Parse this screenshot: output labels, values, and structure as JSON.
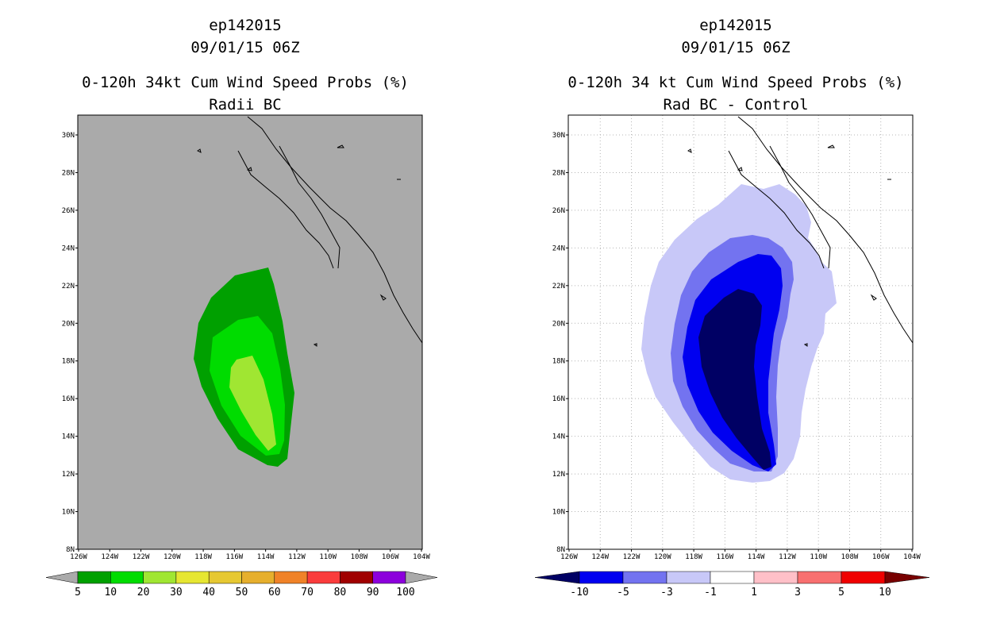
{
  "left_panel": {
    "title_storm": "ep142015",
    "title_date": "09/01/15 06Z",
    "title_product": "0-120h 34kt Cum Wind Speed Probs (%)",
    "title_sub": "Radii BC",
    "background_color": "#aaaaaa",
    "lat_labels": [
      "8N",
      "10N",
      "12N",
      "14N",
      "16N",
      "18N",
      "20N",
      "22N",
      "24N",
      "26N",
      "28N",
      "30N"
    ],
    "lon_labels": [
      "126W",
      "124W",
      "122W",
      "120W",
      "118W",
      "116W",
      "114W",
      "112W",
      "110W",
      "108W",
      "106W",
      "104W"
    ],
    "colorbar": {
      "colors": [
        "#00a000",
        "#00dc00",
        "#a0e632",
        "#e6e632",
        "#e6c832",
        "#e6af2d",
        "#f08228",
        "#fa3c3c",
        "#a00000",
        "#8c00dc"
      ],
      "end_low": "#aaaaaa",
      "end_high": "#aaaaaa",
      "labels": [
        "5",
        "10",
        "20",
        "30",
        "40",
        "50",
        "60",
        "70",
        "80",
        "90",
        "100"
      ]
    }
  },
  "right_panel": {
    "title_storm": "ep142015",
    "title_date": "09/01/15 06Z",
    "title_product": "0-120h 34 kt Cum Wind Speed Probs (%)",
    "title_sub": "Rad BC - Control",
    "background_color": "#ffffff",
    "lat_labels": [
      "8N",
      "10N",
      "12N",
      "14N",
      "16N",
      "18N",
      "20N",
      "22N",
      "24N",
      "26N",
      "28N",
      "30N"
    ],
    "lon_labels": [
      "126W",
      "124W",
      "122W",
      "120W",
      "118W",
      "116W",
      "114W",
      "112W",
      "110W",
      "108W",
      "106W",
      "104W"
    ],
    "colorbar": {
      "colors": [
        "#0000f0",
        "#7373f0",
        "#c8c8f8",
        "#ffffff",
        "#ffc0c8",
        "#f87070",
        "#f00000"
      ],
      "end_low": "#000064",
      "end_high": "#780000",
      "labels": [
        "-10",
        "-5",
        "-3",
        "-1",
        "1",
        "3",
        "5",
        "10"
      ]
    }
  }
}
